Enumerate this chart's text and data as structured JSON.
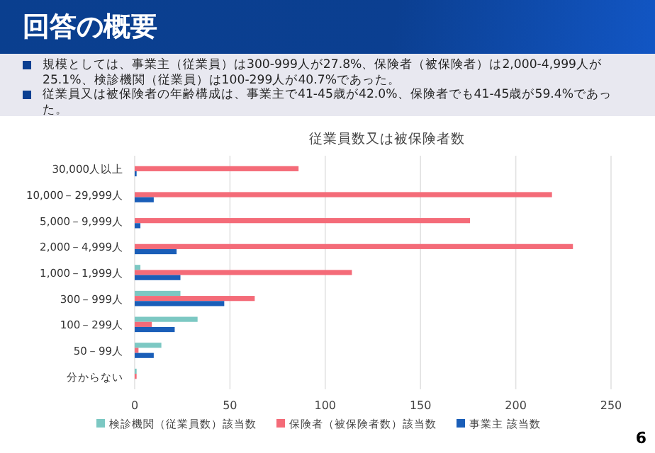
{
  "chart_data": {
    "type": "bar",
    "orientation": "horizontal",
    "title": "回答の概要",
    "subtitle": "従業員数又は被保険者数",
    "annotations": [
      "規模としては、事業主（従業員）は300-999人が27.8%、保険者（被保険者）は2,000-4,999人が25.1%、検診機関（従業員）は100-299人が40.7%であった。",
      "従業員又は被保険者の年齢構成は、事業主で41-45歳が42.0%、保険者でも41-45歳が59.4%であった。",
      "6"
    ],
    "categories": [
      "30,000人以上",
      "10,000－29,999人",
      "5,000－9,999人",
      "2,000－4,999人",
      "1,000－1,999人",
      "300－999人",
      "100－299人",
      "50－99人",
      "分からない"
    ],
    "series": [
      {
        "name": "検診機関（従業員数）該当数",
        "color": "#7cc8c3",
        "values": [
          0,
          0,
          0,
          0,
          3,
          24,
          33,
          14,
          1
        ]
      },
      {
        "name": "保険者（被保険者数）該当数",
        "color": "#f46b78",
        "values": [
          86,
          219,
          176,
          230,
          114,
          63,
          9,
          2,
          1
        ]
      },
      {
        "name": "事業主 該当数",
        "color": "#1a5eb8",
        "values": [
          1,
          10,
          3,
          22,
          24,
          47,
          21,
          10,
          0
        ]
      }
    ],
    "xlim": [
      0,
      250
    ],
    "xticks": [
      0,
      50,
      100,
      150,
      200,
      250
    ],
    "grid": "x",
    "legend": "bottom"
  }
}
